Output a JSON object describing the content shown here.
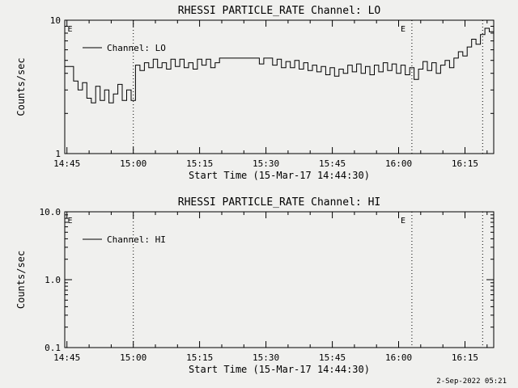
{
  "page": {
    "timestamp": "2-Sep-2022 05:21",
    "bg": "#f0f0ee",
    "fg": "#000000"
  },
  "chart_data": [
    {
      "type": "line",
      "channel": "LO",
      "title": "RHESSI PARTICLE_RATE Channel: LO",
      "xlabel": "Start Time (15-Mar-17 14:44:30)",
      "ylabel": "Counts/sec",
      "legend": "Channel: LO",
      "yscale": "log",
      "ylim": [
        1,
        10
      ],
      "ydecades": [
        {
          "v": 1,
          "label": "1"
        },
        {
          "v": 10,
          "label": "10"
        }
      ],
      "xlim": [
        0,
        97
      ],
      "xticks": [
        {
          "t": 0.5,
          "label": "14:45"
        },
        {
          "t": 15.5,
          "label": "15:00"
        },
        {
          "t": 30.5,
          "label": "15:15"
        },
        {
          "t": 45.5,
          "label": "15:30"
        },
        {
          "t": 60.5,
          "label": "15:45"
        },
        {
          "t": 75.5,
          "label": "16:00"
        },
        {
          "t": 90.5,
          "label": "16:15"
        }
      ],
      "x_minor_step_minutes": 5,
      "event_lines_minutes": [
        15.5,
        78.5,
        94.5
      ],
      "event_labels": [
        {
          "t": 1.2,
          "label": "E"
        },
        {
          "t": 76.5,
          "label": "E"
        }
      ],
      "x_minutes": [
        0,
        1,
        2,
        3,
        4,
        5,
        6,
        7,
        8,
        9,
        10,
        11,
        12,
        13,
        14,
        15,
        16,
        17,
        18,
        19,
        20,
        21,
        22,
        23,
        24,
        25,
        26,
        27,
        28,
        29,
        30,
        31,
        32,
        33,
        34,
        35,
        36,
        37,
        38,
        39,
        40,
        41,
        42,
        43,
        44,
        45,
        46,
        47,
        48,
        49,
        50,
        51,
        52,
        53,
        54,
        55,
        56,
        57,
        58,
        59,
        60,
        61,
        62,
        63,
        64,
        65,
        66,
        67,
        68,
        69,
        70,
        71,
        72,
        73,
        74,
        75,
        76,
        77,
        78,
        79,
        80,
        81,
        82,
        83,
        84,
        85,
        86,
        87,
        88,
        89,
        90,
        91,
        92,
        93,
        94,
        95,
        96,
        97
      ],
      "values": [
        4.5,
        4.5,
        3.5,
        3.0,
        3.4,
        2.6,
        2.4,
        3.2,
        2.5,
        3.0,
        2.4,
        2.8,
        3.3,
        2.5,
        3.0,
        2.5,
        4.6,
        4.2,
        4.8,
        4.4,
        5.1,
        4.4,
        4.8,
        4.3,
        5.1,
        4.5,
        5.1,
        4.4,
        4.8,
        4.3,
        5.1,
        4.6,
        5.1,
        4.4,
        4.8,
        5.2,
        5.2,
        5.2,
        5.2,
        5.2,
        5.2,
        5.2,
        5.2,
        5.2,
        4.7,
        5.2,
        5.2,
        4.6,
        5.1,
        4.4,
        4.9,
        4.4,
        5.0,
        4.3,
        4.8,
        4.2,
        4.6,
        4.1,
        4.5,
        3.9,
        4.4,
        3.8,
        4.3,
        4.0,
        4.6,
        4.1,
        4.7,
        4.0,
        4.5,
        3.9,
        4.6,
        4.1,
        4.8,
        4.2,
        4.7,
        4.0,
        4.6,
        3.9,
        4.4,
        3.6,
        4.3,
        4.9,
        4.2,
        4.8,
        4.0,
        4.6,
        5.0,
        4.4,
        5.2,
        5.8,
        5.4,
        6.3,
        7.2,
        6.6,
        7.8,
        8.7,
        8.2,
        8.5
      ]
    },
    {
      "type": "line",
      "channel": "HI",
      "title": "RHESSI PARTICLE_RATE Channel: HI",
      "xlabel": "Start Time (15-Mar-17 14:44:30)",
      "ylabel": "Counts/sec",
      "legend": "Channel: HI",
      "yscale": "log",
      "ylim": [
        0.1,
        10
      ],
      "ydecades": [
        {
          "v": 0.1,
          "label": "0.1"
        },
        {
          "v": 1,
          "label": "1.0"
        },
        {
          "v": 10,
          "label": "10.0"
        }
      ],
      "xlim": [
        0,
        97
      ],
      "xticks": [
        {
          "t": 0.5,
          "label": "14:45"
        },
        {
          "t": 15.5,
          "label": "15:00"
        },
        {
          "t": 30.5,
          "label": "15:15"
        },
        {
          "t": 45.5,
          "label": "15:30"
        },
        {
          "t": 60.5,
          "label": "15:45"
        },
        {
          "t": 75.5,
          "label": "16:00"
        },
        {
          "t": 90.5,
          "label": "16:15"
        }
      ],
      "x_minor_step_minutes": 5,
      "event_lines_minutes": [
        15.5,
        78.5,
        94.5
      ],
      "event_labels": [
        {
          "t": 1.2,
          "label": "E"
        },
        {
          "t": 76.5,
          "label": "E"
        }
      ],
      "x_minutes": [],
      "values": []
    }
  ]
}
